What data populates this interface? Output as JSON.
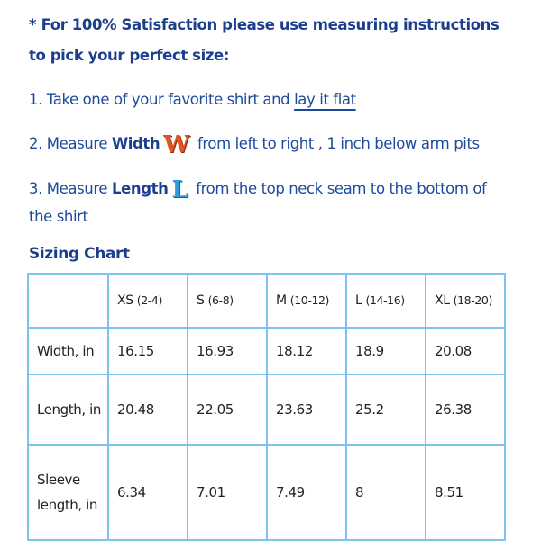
{
  "intro": {
    "line1": "* For 100% Satisfaction please use measuring instructions",
    "line2": "to pick your perfect size:"
  },
  "steps": [
    {
      "prefix": "1. Take one of your favorite shirt and ",
      "link": "lay it flat"
    },
    {
      "prefix": "2. Measure ",
      "bold": "Width",
      "icon": "W",
      "suffix": " from left to right , 1 inch below arm pits"
    },
    {
      "prefix": "3. Measure ",
      "bold": "Length",
      "icon": "L",
      "suffix": " from the top neck seam to the bottom of",
      "cont": "the shirt"
    }
  ],
  "chart_title": "Sizing Chart",
  "table": {
    "headers": [
      {
        "size": "XS",
        "range": "(2-4)"
      },
      {
        "size": "S",
        "range": "(6-8)"
      },
      {
        "size": "M",
        "range": "(10-12)"
      },
      {
        "size": "L",
        "range": "(14-16)"
      },
      {
        "size": "XL",
        "range": "(18-20)"
      }
    ],
    "rows": [
      {
        "label": "Width, in",
        "values": [
          "16.15",
          "16.93",
          "18.12",
          "18.9",
          "20.08"
        ]
      },
      {
        "label": "Length, in",
        "values": [
          "20.48",
          "22.05",
          "23.63",
          "25.2",
          "26.38"
        ]
      },
      {
        "label": "Sleeve length, in",
        "values": [
          "6.34",
          "7.01",
          "7.49",
          "8",
          "8.51"
        ]
      }
    ]
  },
  "colors": {
    "heading": "#1b3f8e",
    "text": "#1d4a9c",
    "border": "#7cc4ef",
    "w_icon": "#e2541c",
    "l_icon": "#2f9ae0"
  }
}
